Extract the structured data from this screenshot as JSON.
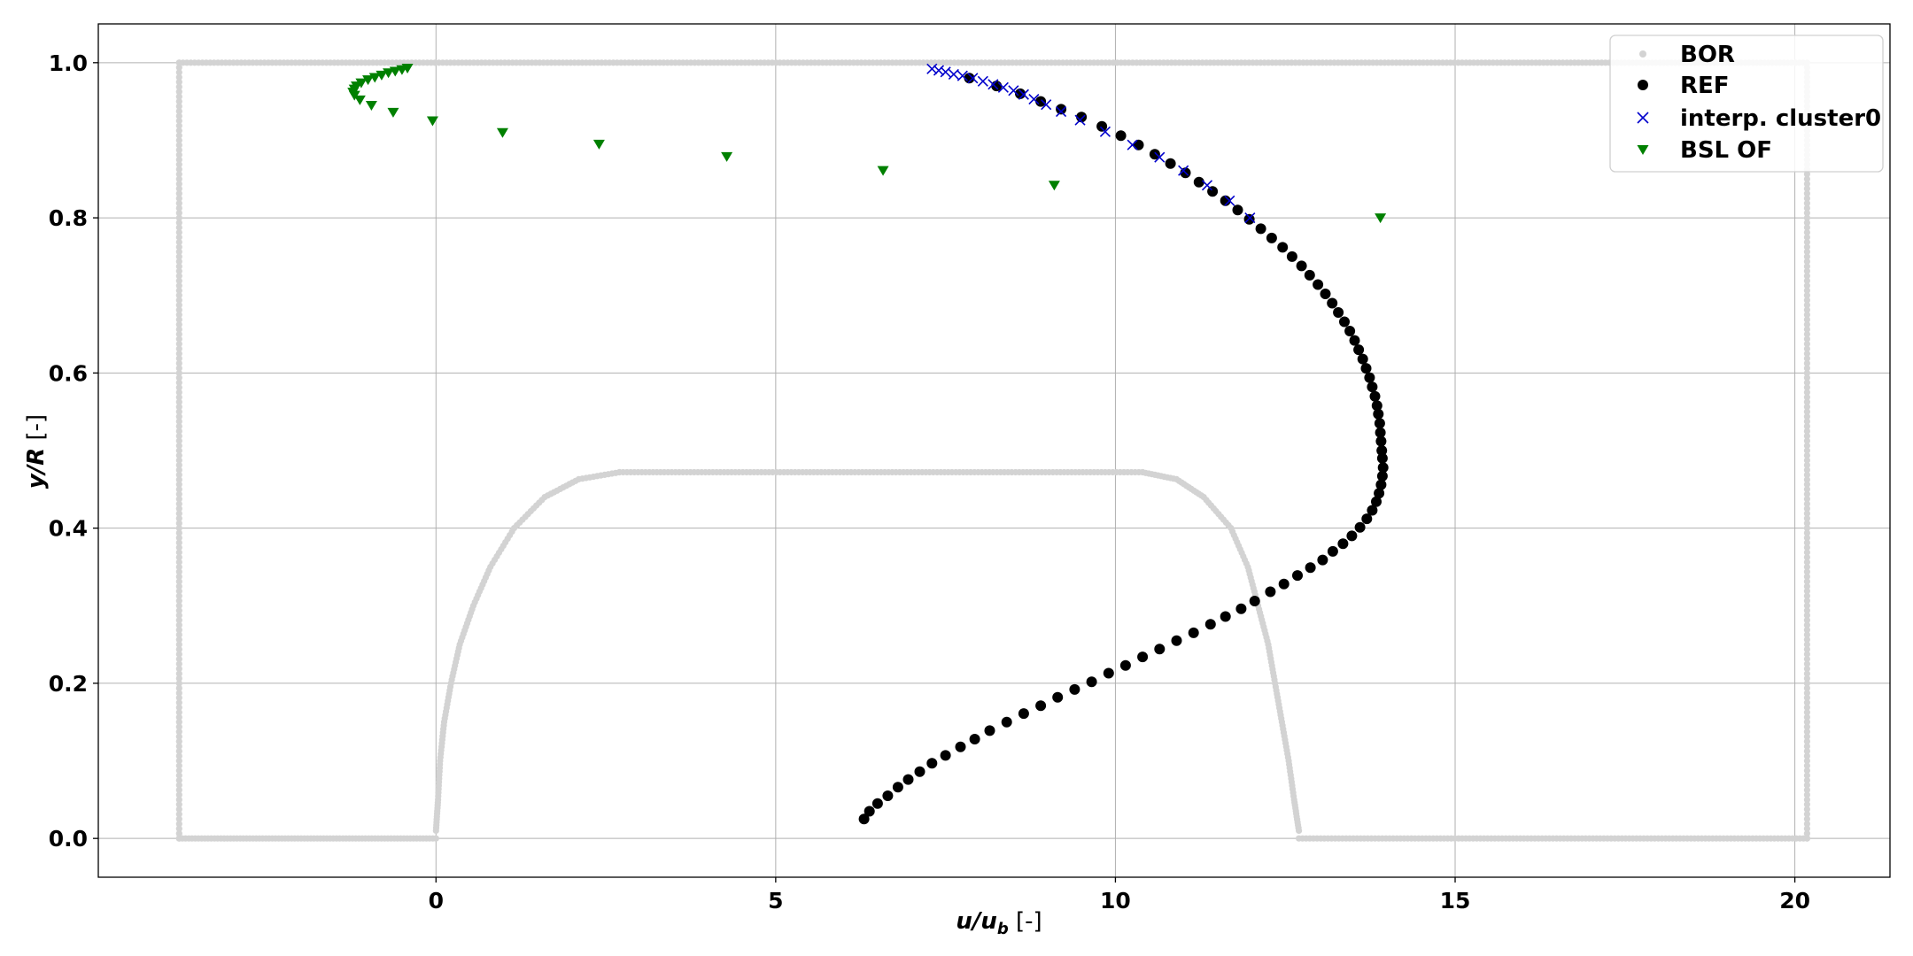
{
  "chart_data": {
    "type": "scatter",
    "title": "",
    "xlabel": {
      "main": "u/u",
      "sub": "b",
      "unit": " [-]"
    },
    "ylabel": {
      "main": "y/R",
      "unit": " [-]"
    },
    "xlim": [
      -4.97,
      21.4
    ],
    "ylim": [
      -0.05,
      1.05
    ],
    "xticks": [
      0,
      5,
      10,
      15,
      20
    ],
    "yticks": [
      0.0,
      0.2,
      0.4,
      0.6,
      0.8,
      1.0
    ],
    "xtick_labels": [
      "0",
      "5",
      "10",
      "15",
      "20"
    ],
    "ytick_labels": [
      "0.0",
      "0.2",
      "0.4",
      "0.6",
      "0.8",
      "1.0"
    ],
    "grid": true,
    "legend_position": "top-right",
    "series": [
      {
        "name": "BOR",
        "marker": "circle-small",
        "color": "#d3d3d3",
        "segments": [
          {
            "kind": "vline",
            "x": -3.78,
            "y0": 0.0,
            "y1": 1.0,
            "n": 160
          },
          {
            "kind": "hline",
            "y": 1.0,
            "x0": -3.78,
            "x1": 20.18,
            "n": 420
          },
          {
            "kind": "vline",
            "x": 20.18,
            "y0": 0.0,
            "y1": 1.0,
            "n": 160
          },
          {
            "kind": "hline",
            "y": 0.0,
            "x0": -3.78,
            "x1": 0.0,
            "n": 80
          },
          {
            "kind": "hline",
            "y": 0.0,
            "x0": 12.7,
            "x1": 20.18,
            "n": 140
          },
          {
            "kind": "hline",
            "y": 0.472,
            "x0": 2.7,
            "x1": 10.4,
            "n": 140
          },
          {
            "kind": "curve",
            "points": [
              [
                0.0,
                0.01
              ],
              [
                0.03,
                0.05
              ],
              [
                0.06,
                0.1
              ],
              [
                0.12,
                0.15
              ],
              [
                0.22,
                0.2
              ],
              [
                0.35,
                0.25
              ],
              [
                0.55,
                0.3
              ],
              [
                0.8,
                0.35
              ],
              [
                1.15,
                0.4
              ],
              [
                1.6,
                0.44
              ],
              [
                2.1,
                0.463
              ],
              [
                2.7,
                0.472
              ]
            ],
            "n": 120
          },
          {
            "kind": "curve",
            "points": [
              [
                10.4,
                0.472
              ],
              [
                10.9,
                0.463
              ],
              [
                11.3,
                0.44
              ],
              [
                11.7,
                0.4
              ],
              [
                11.95,
                0.35
              ],
              [
                12.1,
                0.3
              ],
              [
                12.25,
                0.25
              ],
              [
                12.35,
                0.2
              ],
              [
                12.45,
                0.15
              ],
              [
                12.55,
                0.1
              ],
              [
                12.63,
                0.05
              ],
              [
                12.7,
                0.01
              ]
            ],
            "n": 120
          }
        ]
      },
      {
        "name": "REF",
        "marker": "circle",
        "color": "#000000",
        "points": [
          [
            6.3,
            0.025
          ],
          [
            6.38,
            0.035
          ],
          [
            6.5,
            0.045
          ],
          [
            6.65,
            0.055
          ],
          [
            6.8,
            0.066
          ],
          [
            6.95,
            0.076
          ],
          [
            7.12,
            0.086
          ],
          [
            7.3,
            0.097
          ],
          [
            7.5,
            0.107
          ],
          [
            7.72,
            0.118
          ],
          [
            7.93,
            0.128
          ],
          [
            8.15,
            0.139
          ],
          [
            8.4,
            0.15
          ],
          [
            8.65,
            0.161
          ],
          [
            8.9,
            0.171
          ],
          [
            9.15,
            0.182
          ],
          [
            9.4,
            0.192
          ],
          [
            9.65,
            0.202
          ],
          [
            9.9,
            0.213
          ],
          [
            10.15,
            0.223
          ],
          [
            10.4,
            0.234
          ],
          [
            10.65,
            0.244
          ],
          [
            10.9,
            0.255
          ],
          [
            11.15,
            0.265
          ],
          [
            11.4,
            0.276
          ],
          [
            11.62,
            0.286
          ],
          [
            11.85,
            0.296
          ],
          [
            12.05,
            0.306
          ],
          [
            12.28,
            0.318
          ],
          [
            12.48,
            0.328
          ],
          [
            12.68,
            0.339
          ],
          [
            12.87,
            0.349
          ],
          [
            13.05,
            0.359
          ],
          [
            13.2,
            0.37
          ],
          [
            13.35,
            0.38
          ],
          [
            13.48,
            0.39
          ],
          [
            13.6,
            0.401
          ],
          [
            13.7,
            0.412
          ],
          [
            13.78,
            0.423
          ],
          [
            13.84,
            0.434
          ],
          [
            13.88,
            0.445
          ],
          [
            13.91,
            0.456
          ],
          [
            13.93,
            0.467
          ],
          [
            13.94,
            0.478
          ],
          [
            13.93,
            0.49
          ],
          [
            13.92,
            0.5
          ],
          [
            13.91,
            0.512
          ],
          [
            13.9,
            0.523
          ],
          [
            13.89,
            0.535
          ],
          [
            13.87,
            0.547
          ],
          [
            13.85,
            0.558
          ],
          [
            13.82,
            0.57
          ],
          [
            13.78,
            0.582
          ],
          [
            13.74,
            0.594
          ],
          [
            13.69,
            0.606
          ],
          [
            13.64,
            0.618
          ],
          [
            13.58,
            0.63
          ],
          [
            13.52,
            0.642
          ],
          [
            13.45,
            0.654
          ],
          [
            13.37,
            0.666
          ],
          [
            13.28,
            0.678
          ],
          [
            13.19,
            0.69
          ],
          [
            13.09,
            0.702
          ],
          [
            12.98,
            0.714
          ],
          [
            12.86,
            0.726
          ],
          [
            12.74,
            0.738
          ],
          [
            12.6,
            0.75
          ],
          [
            12.46,
            0.762
          ],
          [
            12.3,
            0.774
          ],
          [
            12.14,
            0.786
          ],
          [
            11.97,
            0.798
          ],
          [
            11.8,
            0.81
          ],
          [
            11.62,
            0.822
          ],
          [
            11.43,
            0.834
          ],
          [
            11.23,
            0.846
          ],
          [
            11.03,
            0.858
          ],
          [
            10.81,
            0.87
          ],
          [
            10.58,
            0.882
          ],
          [
            10.34,
            0.894
          ],
          [
            10.08,
            0.906
          ],
          [
            9.8,
            0.918
          ],
          [
            9.5,
            0.93
          ],
          [
            9.2,
            0.94
          ],
          [
            8.9,
            0.95
          ],
          [
            8.6,
            0.96
          ],
          [
            8.25,
            0.97
          ],
          [
            7.85,
            0.98
          ]
        ]
      },
      {
        "name": "interp. cluster0",
        "marker": "x",
        "color": "#0000cc",
        "points": [
          [
            7.3,
            0.992
          ],
          [
            7.4,
            0.99
          ],
          [
            7.5,
            0.988
          ],
          [
            7.62,
            0.985
          ],
          [
            7.75,
            0.983
          ],
          [
            7.9,
            0.98
          ],
          [
            8.05,
            0.976
          ],
          [
            8.2,
            0.972
          ],
          [
            8.35,
            0.968
          ],
          [
            8.5,
            0.964
          ],
          [
            8.65,
            0.959
          ],
          [
            8.8,
            0.953
          ],
          [
            8.98,
            0.946
          ],
          [
            9.2,
            0.937
          ],
          [
            9.48,
            0.926
          ],
          [
            9.85,
            0.911
          ],
          [
            10.25,
            0.894
          ],
          [
            10.65,
            0.878
          ],
          [
            11.0,
            0.861
          ],
          [
            11.35,
            0.842
          ],
          [
            11.68,
            0.822
          ],
          [
            11.98,
            0.8
          ]
        ]
      },
      {
        "name": "BSL OF",
        "marker": "triangle-down",
        "color": "#008000",
        "points": [
          [
            -0.42,
            0.993
          ],
          [
            -0.5,
            0.991
          ],
          [
            -0.6,
            0.989
          ],
          [
            -0.7,
            0.987
          ],
          [
            -0.8,
            0.984
          ],
          [
            -0.9,
            0.981
          ],
          [
            -1.0,
            0.978
          ],
          [
            -1.1,
            0.974
          ],
          [
            -1.17,
            0.97
          ],
          [
            -1.2,
            0.966
          ],
          [
            -1.22,
            0.962
          ],
          [
            -1.2,
            0.958
          ],
          [
            -1.12,
            0.952
          ],
          [
            -0.95,
            0.945
          ],
          [
            -0.63,
            0.936
          ],
          [
            -0.05,
            0.925
          ],
          [
            0.98,
            0.91
          ],
          [
            2.4,
            0.895
          ],
          [
            4.28,
            0.879
          ],
          [
            6.58,
            0.861
          ],
          [
            9.1,
            0.842
          ],
          [
            13.9,
            0.8
          ]
        ]
      }
    ]
  }
}
